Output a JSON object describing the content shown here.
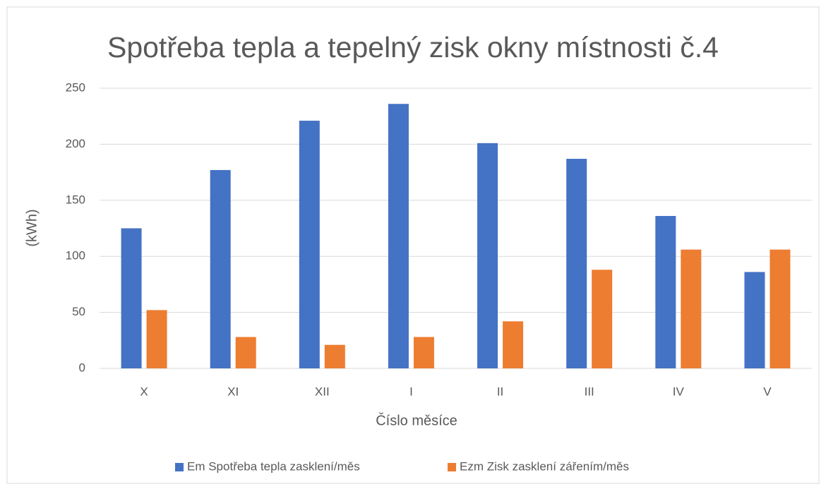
{
  "chart_data": {
    "type": "bar",
    "title": "Spotřeba tepla a tepelný zisk okny místnosti č.4",
    "x_label": "Číslo měsíce",
    "y_label": "(kWh)",
    "categories": [
      "X",
      "XI",
      "XII",
      "I",
      "II",
      "III",
      "IV",
      "V"
    ],
    "series": [
      {
        "name": "Em Spotřeba tepla zasklení/měs",
        "color": "#4472c4",
        "values": [
          125,
          177,
          221,
          236,
          201,
          187,
          136,
          86
        ]
      },
      {
        "name": "Ezm Zisk zasklení zářením/měs",
        "color": "#ed7d31",
        "values": [
          52,
          28,
          21,
          28,
          42,
          88,
          106,
          106
        ]
      }
    ],
    "ylim": [
      0,
      250
    ],
    "yticks": [
      0,
      50,
      100,
      150,
      200,
      250
    ],
    "grid": true,
    "legend": "bottom"
  }
}
